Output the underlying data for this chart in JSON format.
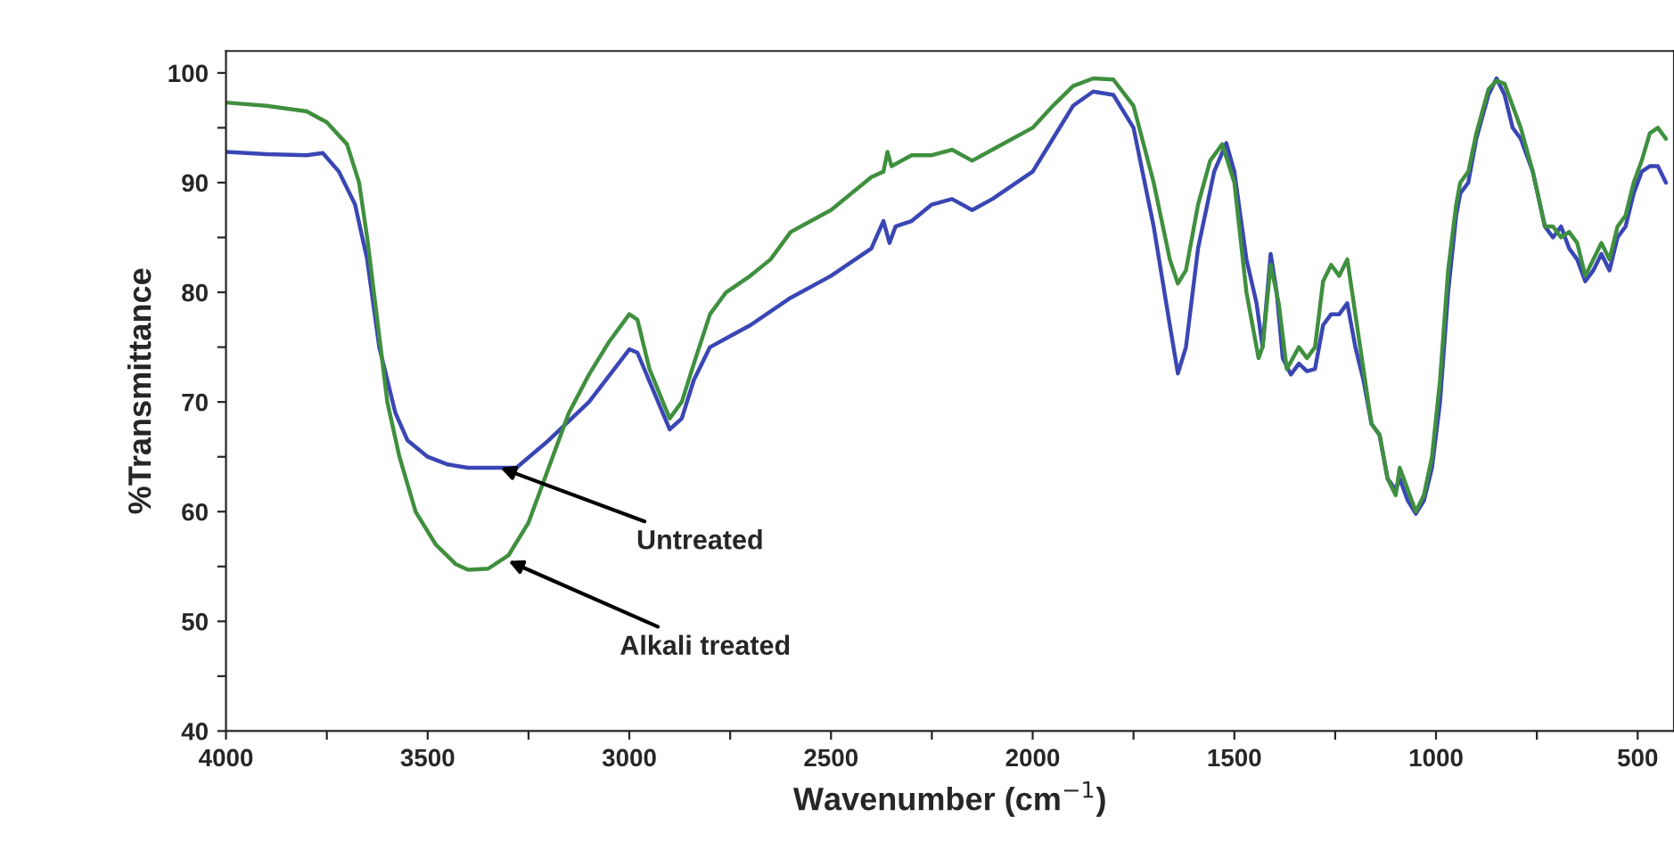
{
  "chart_data": {
    "type": "line",
    "xlabel": "Wavenumber (cm$^{−1}$)",
    "ylabel": "%Transmittance",
    "xlim": [
      4000,
      410
    ],
    "ylim": [
      40,
      102
    ],
    "xticks": [
      4000,
      {
        "value": 3750,
        "label": null
      },
      3500,
      {
        "value": 3250,
        "label": null
      },
      3000,
      {
        "value": 2750,
        "label": null
      },
      2500,
      {
        "value": 2250,
        "label": null
      },
      2000,
      {
        "value": 1750,
        "label": null
      },
      1500,
      {
        "value": 1250,
        "label": null
      },
      1000,
      {
        "value": 750,
        "label": null
      },
      500
    ],
    "yticks": [
      40,
      {
        "value": 45,
        "label": null
      },
      50,
      {
        "value": 55,
        "label": null
      },
      60,
      {
        "value": 65,
        "label": null
      },
      70,
      {
        "value": 75,
        "label": null
      },
      80,
      {
        "value": 85,
        "label": null
      },
      90,
      {
        "value": 95,
        "label": null
      },
      100
    ],
    "grid": false,
    "marker": "none",
    "line_style": "solid",
    "annotations": [
      {
        "text": "Untreated",
        "x": 3320,
        "y": 64
      },
      {
        "text": "Alkali treated",
        "x": 3300,
        "y": 55.5
      }
    ],
    "series": [
      {
        "color": "#3a46b4",
        "x": [
          4000,
          3900,
          3800,
          3760,
          3720,
          3680,
          3650,
          3620,
          3580,
          3550,
          3500,
          3450,
          3400,
          3350,
          3280,
          3200,
          3100,
          3000,
          2980,
          2940,
          2900,
          2870,
          2840,
          2800,
          2750,
          2700,
          2600,
          2500,
          2400,
          2370,
          2355,
          2340,
          2300,
          2250,
          2200,
          2150,
          2100,
          2000,
          1950,
          1900,
          1850,
          1800,
          1750,
          1700,
          1660,
          1640,
          1620,
          1590,
          1550,
          1520,
          1500,
          1470,
          1445,
          1430,
          1410,
          1395,
          1380,
          1360,
          1340,
          1320,
          1300,
          1280,
          1260,
          1240,
          1220,
          1200,
          1180,
          1160,
          1140,
          1120,
          1100,
          1090,
          1070,
          1050,
          1030,
          1010,
          990,
          970,
          950,
          940,
          920,
          900,
          870,
          850,
          830,
          810,
          790,
          760,
          730,
          710,
          690,
          670,
          650,
          630,
          610,
          590,
          570,
          550,
          530,
          510,
          490,
          470,
          450,
          430
        ],
        "values": [
          92.8,
          92.6,
          92.5,
          92.7,
          91,
          88,
          83,
          75,
          69,
          66.5,
          65,
          64.3,
          64,
          64,
          64,
          66.5,
          70,
          74.8,
          74.5,
          71,
          67.5,
          68.5,
          72,
          75,
          76,
          77,
          79.5,
          81.5,
          84,
          86.5,
          84.5,
          86,
          86.5,
          88,
          88.5,
          87.5,
          88.5,
          91,
          94,
          97,
          98.3,
          98,
          95,
          86,
          77,
          72.6,
          75,
          84,
          91,
          93.6,
          91,
          83,
          79,
          75,
          83.5,
          80,
          74,
          72.5,
          73.5,
          72.8,
          73,
          77,
          78,
          78,
          79,
          75,
          72,
          68,
          67,
          63,
          62,
          63,
          61,
          59.8,
          61,
          64,
          70,
          80,
          87,
          89,
          90,
          94,
          98,
          99.5,
          98,
          95,
          94,
          91,
          86,
          85,
          86,
          84,
          83,
          81,
          82,
          83.5,
          82,
          85,
          86,
          89,
          91,
          91.5,
          91.5,
          90
        ]
      },
      {
        "color": "#3f8f3f",
        "x": [
          4000,
          3900,
          3800,
          3750,
          3700,
          3670,
          3650,
          3620,
          3600,
          3570,
          3530,
          3480,
          3430,
          3400,
          3350,
          3300,
          3250,
          3200,
          3150,
          3100,
          3050,
          3000,
          2980,
          2950,
          2900,
          2870,
          2840,
          2800,
          2760,
          2700,
          2650,
          2600,
          2500,
          2400,
          2370,
          2360,
          2350,
          2300,
          2250,
          2200,
          2150,
          2100,
          2000,
          1950,
          1900,
          1850,
          1800,
          1750,
          1700,
          1660,
          1640,
          1620,
          1590,
          1560,
          1530,
          1500,
          1470,
          1440,
          1430,
          1410,
          1390,
          1370,
          1340,
          1320,
          1300,
          1280,
          1260,
          1240,
          1220,
          1200,
          1180,
          1160,
          1140,
          1120,
          1100,
          1090,
          1070,
          1050,
          1030,
          1010,
          990,
          970,
          950,
          940,
          920,
          900,
          870,
          850,
          830,
          810,
          790,
          760,
          730,
          710,
          690,
          670,
          650,
          630,
          610,
          590,
          570,
          550,
          530,
          510,
          490,
          470,
          450,
          430
        ],
        "values": [
          97.3,
          97,
          96.5,
          95.5,
          93.5,
          90,
          85,
          76,
          70,
          65,
          60,
          57,
          55.2,
          54.7,
          54.8,
          56,
          59,
          64,
          69,
          72.5,
          75.5,
          78,
          77.5,
          73,
          68.5,
          70,
          73.5,
          78,
          80,
          81.5,
          83,
          85.5,
          87.5,
          90.5,
          91,
          92.8,
          91.5,
          92.5,
          92.5,
          93,
          92,
          93,
          95,
          97,
          98.8,
          99.5,
          99.4,
          97,
          90,
          83,
          80.8,
          82,
          88,
          92,
          93.5,
          90,
          80,
          74,
          75,
          82.5,
          79,
          73,
          75,
          74,
          75,
          81,
          82.5,
          81.5,
          83,
          78,
          73,
          68,
          67,
          63,
          61.5,
          64,
          62,
          60,
          61.5,
          65,
          72,
          82,
          88,
          90,
          91,
          94.5,
          98.5,
          99.3,
          99,
          97,
          95,
          91,
          86,
          86,
          85,
          85.5,
          84.5,
          81.5,
          83,
          84.5,
          83,
          86,
          87,
          90,
          92,
          94.5,
          95,
          94
        ]
      }
    ]
  }
}
